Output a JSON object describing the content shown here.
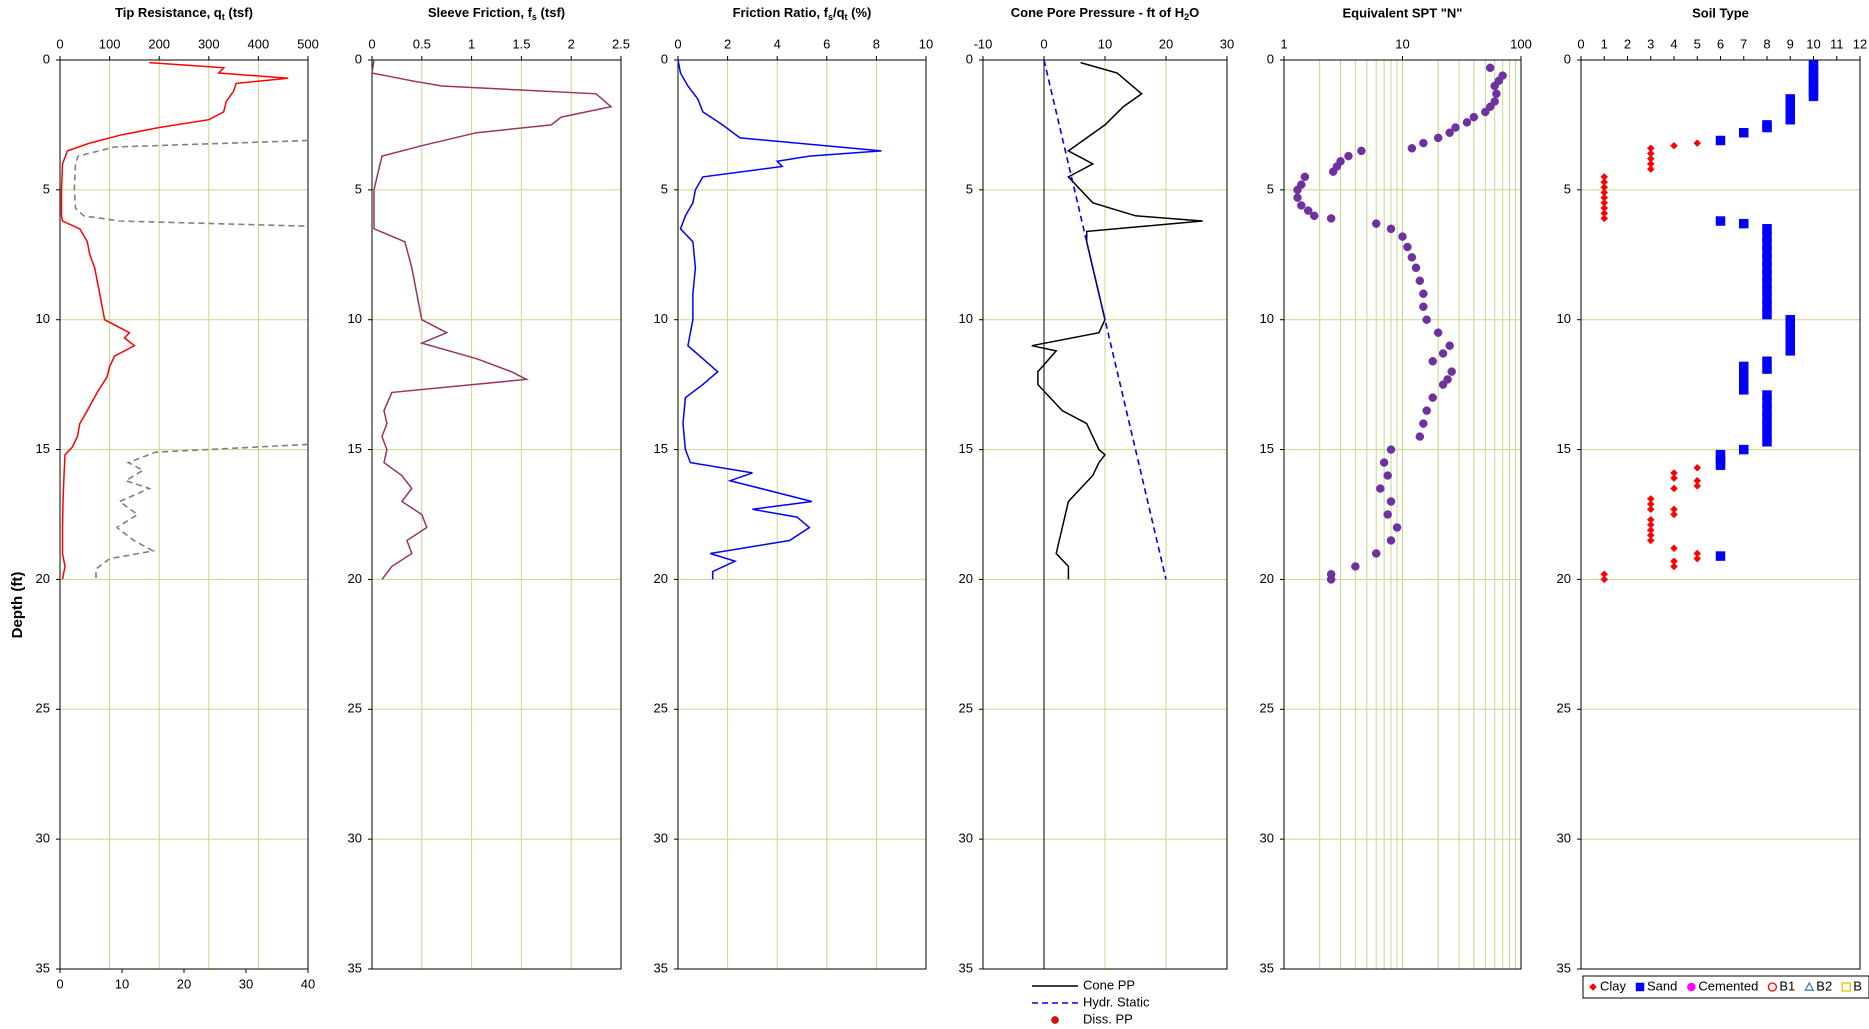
{
  "chart_data": [
    {
      "type": "line",
      "title": [
        "Tip Resistance, q",
        "t",
        " (tsf)"
      ],
      "ylabel": "Depth (ft)",
      "xlim": [
        0,
        500
      ],
      "xticks": [
        0,
        100,
        200,
        300,
        400,
        500
      ],
      "x2lim": [
        0,
        40
      ],
      "x2ticks": [
        0,
        10,
        20,
        30,
        40
      ],
      "ylim": [
        0,
        35
      ],
      "yticks": [
        0,
        5,
        10,
        15,
        20,
        25,
        30,
        35
      ],
      "y_reversed": true,
      "grid": true,
      "xgrid": true,
      "series": [
        {
          "color": "#ff0000",
          "x": [
            180,
            330,
            320,
            460,
            355,
            350,
            335,
            330,
            300,
            200,
            120,
            60,
            15,
            5,
            3,
            3,
            5,
            40,
            55,
            60,
            70,
            80,
            90,
            140,
            130,
            150,
            110,
            100,
            95,
            75,
            55,
            40,
            35,
            25,
            10,
            8,
            6,
            5,
            5,
            10,
            5
          ],
          "y": [
            0.1,
            0.3,
            0.5,
            0.7,
            0.9,
            1.2,
            1.6,
            2.0,
            2.3,
            2.6,
            2.9,
            3.2,
            3.5,
            4,
            5,
            6,
            6.2,
            6.5,
            7,
            7.5,
            8,
            9,
            10,
            10.5,
            10.7,
            11,
            11.4,
            11.8,
            12.2,
            12.8,
            13.5,
            14,
            14.5,
            14.9,
            15.2,
            16,
            17,
            18,
            19,
            19.5,
            20
          ]
        },
        {
          "color": "#808080",
          "dash": true,
          "axis": "x2",
          "x": [
            40,
            8.8,
            2.9,
            2.5,
            2.3,
            2.5,
            3.8,
            9.6,
            40,
            null,
            40,
            15.4,
            11,
            13.4,
            10.6,
            14.4,
            9.6,
            12.5,
            9.2,
            11.9,
            15,
            8,
            5.8,
            5.8
          ],
          "y": [
            3.1,
            3.35,
            3.7,
            4.0,
            5.0,
            5.7,
            6.0,
            6.2,
            6.4,
            null,
            14.8,
            15.1,
            15.5,
            15.8,
            16.2,
            16.5,
            17,
            17.5,
            18,
            18.5,
            18.9,
            19.2,
            19.6,
            20
          ]
        }
      ]
    },
    {
      "type": "line",
      "title": [
        "Sleeve Friction, f",
        "s",
        " (tsf)"
      ],
      "xlim": [
        0,
        2.5
      ],
      "xticks": [
        0,
        0.5,
        1,
        1.5,
        2,
        2.5
      ],
      "ylim": [
        0,
        35
      ],
      "yticks": [
        0,
        5,
        10,
        15,
        20,
        25,
        30,
        35
      ],
      "y_reversed": true,
      "grid": true,
      "xgrid": true,
      "series": [
        {
          "color": "#993366",
          "x": [
            0.02,
            0,
            0.4,
            0.7,
            2.25,
            2.4,
            1.9,
            1.8,
            1.05,
            0.5,
            0.1,
            0.05,
            0.02,
            0.02,
            0.33,
            0.4,
            0.45,
            0.5,
            0.75,
            0.5,
            1.05,
            1.4,
            1.55,
            0.2,
            0.12,
            0.15,
            0.1,
            0.15,
            0.12,
            0.3,
            0.4,
            0.3,
            0.5,
            0.55,
            0.35,
            0.4,
            0.2,
            0.1
          ],
          "y": [
            0,
            0.5,
            0.8,
            1.0,
            1.3,
            1.8,
            2.2,
            2.5,
            2.8,
            3.3,
            3.7,
            4.5,
            5,
            6.5,
            7,
            8,
            9,
            10,
            10.5,
            10.9,
            11.5,
            12,
            12.3,
            12.8,
            13.5,
            14,
            14.5,
            15,
            15.5,
            16,
            16.5,
            17,
            17.5,
            18,
            18.5,
            19,
            19.5,
            20
          ]
        }
      ]
    },
    {
      "type": "line",
      "title": [
        "Friction Ratio, f",
        "s",
        "/q",
        "t",
        " (%)"
      ],
      "xlim": [
        0,
        10
      ],
      "xticks": [
        0,
        2,
        4,
        6,
        8,
        10
      ],
      "ylim": [
        0,
        35
      ],
      "yticks": [
        0,
        5,
        10,
        15,
        20,
        25,
        30,
        35
      ],
      "y_reversed": true,
      "grid": true,
      "xgrid": true,
      "series": [
        {
          "color": "#0000ff",
          "x": [
            0,
            0.1,
            0.4,
            0.8,
            1.0,
            1.8,
            2.5,
            8.2,
            5.3,
            4,
            4.2,
            1.0,
            0.7,
            0.6,
            0.3,
            0.1,
            0.6,
            0.7,
            0.6,
            0.6,
            0.4,
            1.0,
            1.6,
            1.0,
            0.3,
            0.2,
            0.3,
            0.5,
            3.0,
            2.1,
            5.4,
            3.0,
            4.8,
            5.3,
            4.5,
            1.3,
            2.3,
            1.4,
            1.4
          ],
          "y": [
            0,
            0.5,
            1,
            1.5,
            2,
            2.5,
            3,
            3.5,
            3.7,
            3.9,
            4.1,
            4.5,
            5,
            5.5,
            6,
            6.5,
            7,
            8,
            9,
            10,
            11,
            11.5,
            12,
            12.5,
            13,
            14,
            15,
            15.5,
            15.9,
            16.2,
            17,
            17.3,
            17.6,
            18,
            18.5,
            19,
            19.3,
            19.7,
            20
          ]
        }
      ]
    },
    {
      "type": "line",
      "title": [
        "Cone Pore Pressure - ft of H",
        "2",
        "O"
      ],
      "xlim": [
        -10,
        30
      ],
      "xticks": [
        -10,
        0,
        10,
        20,
        30
      ],
      "ylim": [
        0,
        35
      ],
      "yticks": [
        0,
        5,
        10,
        15,
        20,
        25,
        30,
        35
      ],
      "y_reversed": true,
      "grid": true,
      "xgrid": true,
      "zero_line": true,
      "legend": "bottom",
      "legend_orientation": "vertical",
      "series": [
        {
          "name": "Cone PP",
          "color": "#000000",
          "x": [
            6,
            12,
            14,
            16,
            13,
            10,
            7,
            4,
            8,
            4,
            6,
            8,
            15,
            26,
            7,
            7,
            8,
            9,
            10,
            9,
            -2,
            2,
            -1,
            -1,
            1,
            3,
            7,
            8,
            9,
            10,
            9,
            8,
            4,
            3,
            2,
            4,
            4
          ],
          "y": [
            0.1,
            0.5,
            0.9,
            1.3,
            1.8,
            2.5,
            3.0,
            3.5,
            4,
            4.5,
            5,
            5.5,
            6,
            6.2,
            6.6,
            7,
            8,
            9,
            10,
            10.5,
            11,
            11.2,
            12,
            12.5,
            13,
            13.5,
            14,
            14.5,
            15,
            15.2,
            15.5,
            16,
            17,
            18,
            19,
            19.5,
            20
          ]
        },
        {
          "name": "Hydr. Static",
          "color": "#0000ff",
          "dash": true,
          "x": [
            0,
            20
          ],
          "y": [
            0,
            20
          ]
        },
        {
          "name": "Diss. PP",
          "color": "#ff0000",
          "marker": "circle",
          "x": [],
          "y": []
        }
      ]
    },
    {
      "type": "scatter",
      "title": "Equivalent SPT \"N\"",
      "xlim": [
        1,
        100
      ],
      "xticks": [
        1,
        10,
        100
      ],
      "xlog": true,
      "xminor_grid": [
        2,
        3,
        4,
        5,
        6,
        7,
        8,
        9,
        20,
        30,
        40,
        50,
        60,
        70,
        80,
        90
      ],
      "ylim": [
        0,
        35
      ],
      "yticks": [
        0,
        5,
        10,
        15,
        20,
        25,
        30,
        35
      ],
      "y_reversed": true,
      "grid": true,
      "xgrid": true,
      "series": [
        {
          "color": "#7030a0",
          "marker": "circle",
          "x": [
            55,
            70,
            65,
            60,
            62,
            60,
            55,
            50,
            40,
            35,
            28,
            25,
            20,
            15,
            12,
            4.5,
            3.5,
            3,
            2.8,
            2.6,
            1.5,
            1.4,
            1.3,
            1.3,
            1.4,
            1.6,
            1.8,
            2.5,
            6,
            8,
            10,
            11,
            12,
            13,
            14,
            15,
            15,
            16,
            20,
            25,
            22,
            18,
            26,
            24,
            22,
            18,
            16,
            15,
            14,
            8,
            7,
            7.5,
            6.5,
            8,
            7.5,
            9,
            8,
            6,
            4,
            2.5,
            2.5
          ],
          "y": [
            0.3,
            0.6,
            0.8,
            1.0,
            1.3,
            1.6,
            1.8,
            2.0,
            2.2,
            2.4,
            2.6,
            2.8,
            3.0,
            3.2,
            3.4,
            3.5,
            3.7,
            3.9,
            4.1,
            4.3,
            4.5,
            4.8,
            5.0,
            5.3,
            5.6,
            5.8,
            6.0,
            6.1,
            6.3,
            6.5,
            6.8,
            7.2,
            7.6,
            8,
            8.5,
            9,
            9.5,
            10,
            10.5,
            11,
            11.3,
            11.6,
            12,
            12.3,
            12.5,
            13,
            13.5,
            14,
            14.5,
            15,
            15.5,
            16,
            16.5,
            17,
            17.5,
            18,
            18.5,
            19,
            19.5,
            19.8,
            20
          ]
        }
      ]
    },
    {
      "type": "scatter",
      "title": "Soil Type",
      "xlim": [
        0,
        12
      ],
      "xticks": [
        0,
        1,
        2,
        3,
        4,
        5,
        6,
        7,
        8,
        9,
        10,
        11,
        12
      ],
      "ylim": [
        0,
        35
      ],
      "yticks": [
        0,
        5,
        10,
        15,
        20,
        25,
        30,
        35
      ],
      "y_reversed": true,
      "grid": true,
      "xgrid": false,
      "legend": "bottom",
      "legend_orientation": "horizontal",
      "series": [
        {
          "name": "Clay",
          "color": "#ff0000",
          "marker": "diamond",
          "x": [
            4,
            5,
            3,
            3,
            3,
            3,
            3,
            1,
            1,
            1,
            1,
            1,
            1,
            1,
            1,
            1,
            5,
            4,
            4,
            5,
            5,
            4,
            3,
            3,
            3,
            4,
            4,
            3,
            3,
            3,
            3,
            3,
            4,
            5,
            5,
            4,
            4,
            1,
            1
          ],
          "y": [
            3.3,
            3.2,
            3.4,
            3.6,
            3.8,
            4.0,
            4.2,
            4.5,
            4.7,
            4.9,
            5.1,
            5.3,
            5.5,
            5.7,
            5.9,
            6.1,
            15.7,
            15.9,
            16.1,
            16.2,
            16.4,
            16.5,
            16.9,
            17.1,
            17.3,
            17.3,
            17.5,
            17.7,
            17.9,
            18.1,
            18.3,
            18.5,
            18.8,
            19.0,
            19.2,
            19.3,
            19.5,
            19.8,
            20.0
          ]
        },
        {
          "name": "Sand",
          "color": "#0000ff",
          "marker": "square",
          "x": [
            10,
            10,
            10,
            10,
            10,
            10,
            10,
            9,
            9,
            9,
            9,
            9,
            8,
            8,
            7,
            6,
            6,
            7,
            8,
            8,
            8,
            8,
            8,
            8,
            8,
            8,
            8,
            8,
            8,
            8,
            9,
            9,
            9,
            9,
            9,
            8,
            8,
            7,
            7,
            7,
            7,
            8,
            8,
            8,
            8,
            8,
            8,
            8,
            7,
            6,
            6,
            6,
            6
          ],
          "y": [
            0.2,
            0.4,
            0.6,
            0.8,
            1.0,
            1.2,
            1.4,
            1.5,
            1.7,
            1.9,
            2.1,
            2.3,
            2.5,
            2.6,
            2.8,
            3.1,
            6.2,
            6.3,
            6.5,
            6.8,
            7.1,
            7.4,
            7.7,
            8.0,
            8.3,
            8.6,
            8.9,
            9.2,
            9.5,
            9.8,
            10.0,
            10.3,
            10.6,
            10.9,
            11.2,
            11.6,
            11.9,
            11.8,
            12.1,
            12.4,
            12.7,
            12.9,
            13.2,
            13.5,
            13.8,
            14.1,
            14.4,
            14.7,
            15.0,
            15.2,
            15.4,
            15.6,
            19.1
          ]
        },
        {
          "name": "Cemented",
          "color": "#ff00ff",
          "marker": "circle",
          "x": [],
          "y": []
        },
        {
          "name": "B1",
          "color": "#ff0000",
          "marker": "circle",
          "open": true,
          "x": [],
          "y": []
        },
        {
          "name": "B2",
          "color": "#4a7ebb",
          "marker": "triangle",
          "open": true,
          "x": [],
          "y": []
        },
        {
          "name": "B",
          "color": "#e6c000",
          "marker": "square",
          "open": true,
          "x": [],
          "y": []
        }
      ]
    }
  ]
}
